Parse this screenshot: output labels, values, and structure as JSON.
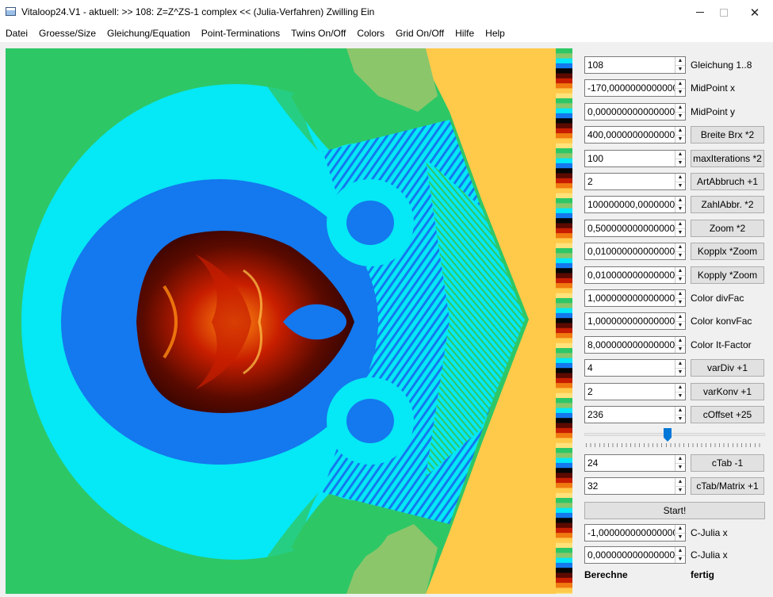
{
  "window": {
    "title": "Vitaloop24.V1 - aktuell: >> 108: Z=Z^ZS-1 complex <<  (Julia-Verfahren)  Zwilling Ein",
    "minimize_icon": "minimize-icon",
    "maximize_icon": "maximize-icon",
    "close_icon": "close-icon",
    "close_glyph": "✕"
  },
  "menu": [
    "Datei",
    "Groesse/Size",
    "Gleichung/Equation",
    "Point-Terminations",
    "Twins On/Off",
    "Colors",
    "Grid On/Off",
    "Hilfe",
    "Help"
  ],
  "controls": [
    {
      "value": "108",
      "label": "Gleichung 1..8",
      "kind": "label"
    },
    {
      "value": "-170,000000000000000",
      "label": "MidPoint x",
      "kind": "label"
    },
    {
      "value": "0,0000000000000000",
      "label": "MidPoint y",
      "kind": "label"
    },
    {
      "value": "400,000000000000000",
      "label": "Breite Brx *2",
      "kind": "button"
    },
    {
      "value": "100",
      "label": "maxIterations *2",
      "kind": "button"
    },
    {
      "value": "2",
      "label": "ArtAbbruch +1",
      "kind": "button"
    },
    {
      "value": "100000000,000000000",
      "label": "ZahlAbbr. *2",
      "kind": "button"
    },
    {
      "value": "0,5000000000000000",
      "label": "Zoom *2",
      "kind": "button"
    },
    {
      "value": "0,0100000000000000",
      "label": "Kopplx *Zoom",
      "kind": "button"
    },
    {
      "value": "0,0100000000000000",
      "label": "Kopply *Zoom",
      "kind": "button"
    },
    {
      "value": "1,0000000000000000",
      "label": "Color divFac",
      "kind": "label"
    },
    {
      "value": "1,0000000000000000",
      "label": "Color konvFac",
      "kind": "label"
    },
    {
      "value": "8,0000000000000000",
      "label": "Color It-Factor",
      "kind": "label"
    },
    {
      "value": "4",
      "label": "varDiv +1",
      "kind": "button"
    },
    {
      "value": "2",
      "label": "varKonv +1",
      "kind": "button"
    },
    {
      "value": "236",
      "label": "cOffset +25",
      "kind": "button"
    }
  ],
  "slider": {
    "value_fraction": 0.46
  },
  "controls_lower": [
    {
      "value": "24",
      "label": "cTab -1",
      "kind": "button"
    },
    {
      "value": "32",
      "label": "cTab/Matrix +1",
      "kind": "button"
    }
  ],
  "start_label": "Start!",
  "julia": [
    {
      "value": "-1,0000000000000000",
      "label": "C-Julia x"
    },
    {
      "value": "0,0000000000000000",
      "label": "C-Julia x"
    }
  ],
  "status": {
    "left": "Berechne",
    "right": "fertig"
  },
  "spin_up_glyph": "▲",
  "spin_down_glyph": "▼",
  "colors": {
    "green": "#2ec766",
    "light_green": "#8bc66b",
    "cyan": "#05e8f5",
    "blue": "#1478ee",
    "dark_red": "#5a0a00",
    "red": "#c81e00",
    "orange": "#f07a10",
    "yellow": "#ffc94a",
    "accent": "#0078d7"
  }
}
